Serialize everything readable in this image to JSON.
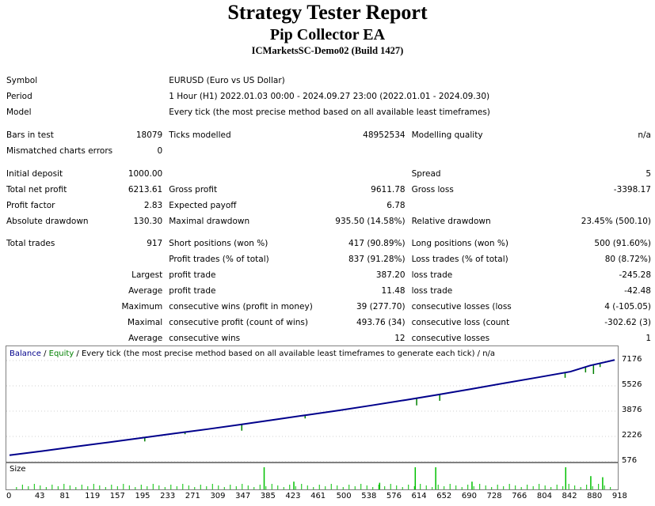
{
  "header": {
    "title": "Strategy Tester Report",
    "ea_name": "Pip Collector EA",
    "server": "ICMarketsSC-Demo02 (Build 1427)"
  },
  "info": {
    "symbol_label": "Symbol",
    "symbol_value": "EURUSD (Euro vs US Dollar)",
    "period_label": "Period",
    "period_value": "1 Hour (H1) 2022.01.03 00:00 - 2024.09.27 23:00 (2022.01.01 - 2024.09.30)",
    "model_label": "Model",
    "model_value": "Every tick (the most precise method based on all available least timeframes)"
  },
  "bars": {
    "bars_label": "Bars in test",
    "bars_value": "18079",
    "ticks_label": "Ticks modelled",
    "ticks_value": "48952534",
    "quality_label": "Modelling quality",
    "quality_value": "n/a",
    "mismatch_label": "Mismatched charts errors",
    "mismatch_value": "0"
  },
  "results": {
    "initial_deposit_label": "Initial deposit",
    "initial_deposit_value": "1000.00",
    "spread_label": "Spread",
    "spread_value": "5",
    "net_profit_label": "Total net profit",
    "net_profit_value": "6213.61",
    "gross_profit_label": "Gross profit",
    "gross_profit_value": "9611.78",
    "gross_loss_label": "Gross loss",
    "gross_loss_value": "-3398.17",
    "profit_factor_label": "Profit factor",
    "profit_factor_value": "2.83",
    "expected_payoff_label": "Expected payoff",
    "expected_payoff_value": "6.78",
    "abs_dd_label": "Absolute drawdown",
    "abs_dd_value": "130.30",
    "max_dd_label": "Maximal drawdown",
    "max_dd_value": "935.50 (14.58%)",
    "rel_dd_label": "Relative drawdown",
    "rel_dd_value": "23.45% (500.10)"
  },
  "trades": {
    "total_label": "Total trades",
    "total_value": "917",
    "short_label": "Short positions (won %)",
    "short_value": "417 (90.89%)",
    "long_label": "Long positions (won %)",
    "long_value": "500 (91.60%)",
    "profit_trades_label": "Profit trades (% of total)",
    "profit_trades_value": "837 (91.28%)",
    "loss_trades_label": "Loss trades (% of total)",
    "loss_trades_value": "80 (8.72%)",
    "largest_label": "Largest",
    "largest_profit_label": "profit trade",
    "largest_profit_value": "387.20",
    "largest_loss_label": "loss trade",
    "largest_loss_value": "-245.28",
    "average_label": "Average",
    "avg_profit_label": "profit trade",
    "avg_profit_value": "11.48",
    "avg_loss_label": "loss trade",
    "avg_loss_value": "-42.48",
    "maximum_label": "Maximum",
    "max_cons_wins_label": "consecutive wins (profit in money)",
    "max_cons_wins_value": "39 (277.70)",
    "max_cons_losses_label": "consecutive losses (loss in money)",
    "max_cons_losses_value": "4 (-105.05)",
    "maximal_label": "Maximal",
    "maximal_profit_label": "consecutive profit (count of wins)",
    "maximal_profit_value": "493.76 (34)",
    "maximal_loss_label": "consecutive loss (count of losses)",
    "maximal_loss_value": "-302.62 (3)",
    "average2_label": "Average",
    "avg_cons_wins_label": "consecutive wins",
    "avg_cons_wins_value": "12",
    "avg_cons_losses_label": "consecutive losses",
    "avg_cons_losses_value": "1"
  },
  "chart_data": {
    "type": "line",
    "title_balance": "Balance",
    "title_sep1": " / ",
    "title_equity": "Equity",
    "title_rest": " / Every tick (the most precise method based on all available least timeframes to generate each tick) / n/a",
    "size_label": "Size",
    "colors": {
      "balance": "#00008b",
      "equity": "#008000",
      "size": "#00c000"
    },
    "y_ticks": [
      "7176",
      "5526",
      "3876",
      "2226",
      "576"
    ],
    "ylim": [
      576,
      7176
    ],
    "x_ticks": [
      "0",
      "43",
      "81",
      "119",
      "157",
      "195",
      "233",
      "271",
      "309",
      "347",
      "385",
      "423",
      "461",
      "500",
      "538",
      "576",
      "614",
      "652",
      "690",
      "728",
      "766",
      "804",
      "842",
      "880",
      "918"
    ],
    "xlim": [
      0,
      917
    ],
    "series": [
      {
        "x": [
          0,
          50,
          100,
          150,
          200,
          250,
          300,
          350,
          400,
          450,
          500,
          550,
          600,
          650,
          700,
          750,
          800,
          850,
          880,
          917
        ],
        "values": [
          1000,
          1270,
          1560,
          1840,
          2130,
          2420,
          2700,
          3000,
          3310,
          3620,
          3930,
          4260,
          4600,
          4950,
          5320,
          5700,
          6070,
          6450,
          6850,
          7213
        ]
      }
    ],
    "equity_dips": [
      {
        "x": 205,
        "value": 1900
      },
      {
        "x": 266,
        "value": 2370
      },
      {
        "x": 352,
        "value": 2600
      },
      {
        "x": 448,
        "value": 3400
      },
      {
        "x": 617,
        "value": 4250
      },
      {
        "x": 652,
        "value": 4550
      },
      {
        "x": 842,
        "value": 6050
      },
      {
        "x": 873,
        "value": 6400
      },
      {
        "x": 885,
        "value": 6300
      },
      {
        "x": 895,
        "value": 6750
      }
    ],
    "size_bars": [
      {
        "x": 385,
        "value": 1.0
      },
      {
        "x": 614,
        "value": 1.0
      },
      {
        "x": 645,
        "value": 1.0
      },
      {
        "x": 842,
        "value": 1.0
      },
      {
        "x": 880,
        "value": 0.6
      },
      {
        "x": 898,
        "value": 0.55
      },
      {
        "x": 430,
        "value": 0.35
      },
      {
        "x": 560,
        "value": 0.3
      },
      {
        "x": 700,
        "value": 0.35
      }
    ]
  }
}
